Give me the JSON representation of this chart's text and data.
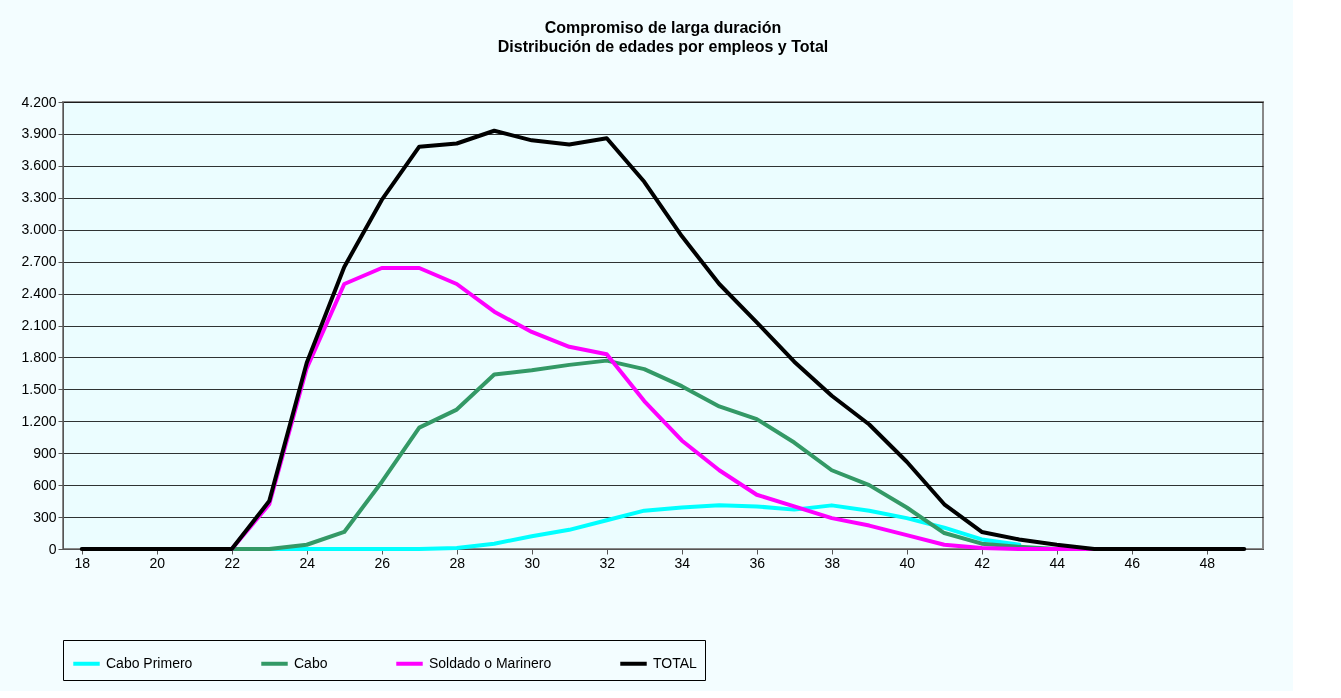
{
  "chart_data": {
    "type": "line",
    "title": "Compromiso de larga duración",
    "subtitle": "Distribución de edades por empleos y Total",
    "x": [
      18,
      19,
      20,
      21,
      22,
      23,
      24,
      25,
      26,
      27,
      28,
      29,
      30,
      31,
      32,
      33,
      34,
      35,
      36,
      37,
      38,
      39,
      40,
      41,
      42,
      43,
      44,
      45,
      46,
      47,
      48,
      49
    ],
    "xlim": [
      17.5,
      49.5
    ],
    "xticks": [
      18,
      20,
      22,
      24,
      26,
      28,
      30,
      32,
      34,
      36,
      38,
      40,
      42,
      44,
      46,
      48
    ],
    "ylim": [
      0,
      4200
    ],
    "yticks": [
      0,
      {
        "value": 300,
        "label": "300"
      },
      {
        "value": 600,
        "label": "600"
      },
      {
        "value": 900,
        "label": "900"
      },
      {
        "value": 1200,
        "label": "1.200"
      },
      {
        "value": 1500,
        "label": "1.500"
      },
      {
        "value": 1800,
        "label": "1.800"
      },
      {
        "value": 2100,
        "label": "2.100"
      },
      {
        "value": 2400,
        "label": "2.400"
      },
      {
        "value": 2700,
        "label": "2.700"
      },
      {
        "value": 3000,
        "label": "3.000"
      },
      {
        "value": 3300,
        "label": "3.300"
      },
      {
        "value": 3600,
        "label": "3.600"
      },
      {
        "value": 3900,
        "label": "3.900"
      },
      {
        "value": 4200,
        "label": "4.200"
      }
    ],
    "grid": "y",
    "legend": "bottom",
    "line_style": "solid",
    "series": [
      {
        "name": "Cabo Primero",
        "color": "#00ffff",
        "values": [
          null,
          null,
          null,
          null,
          0,
          0,
          0,
          0,
          0,
          0,
          10,
          50,
          120,
          180,
          270,
          360,
          390,
          410,
          400,
          370,
          410,
          360,
          290,
          200,
          90,
          40,
          null,
          null,
          null,
          null,
          null,
          null
        ]
      },
      {
        "name": "Cabo",
        "color": "#339966",
        "values": [
          null,
          null,
          null,
          null,
          0,
          0,
          40,
          160,
          630,
          1140,
          1310,
          1640,
          1680,
          1730,
          1770,
          1690,
          1530,
          1340,
          1220,
          1000,
          740,
          600,
          390,
          150,
          50,
          20,
          0,
          0,
          null,
          null,
          null,
          null
        ]
      },
      {
        "name": "Soldado o Marinero",
        "color": "#ff00ff",
        "values": [
          null,
          null,
          null,
          null,
          0,
          420,
          1700,
          2490,
          2640,
          2640,
          2490,
          2230,
          2040,
          1900,
          1830,
          1390,
          1020,
          740,
          510,
          400,
          290,
          220,
          130,
          40,
          10,
          0,
          0,
          0,
          null,
          null,
          null,
          null
        ]
      },
      {
        "name": "TOTAL",
        "color": "#000000",
        "values": [
          0,
          0,
          0,
          0,
          0,
          450,
          1750,
          2650,
          3280,
          3780,
          3810,
          3930,
          3840,
          3800,
          3860,
          3450,
          2940,
          2490,
          2130,
          1760,
          1440,
          1170,
          820,
          420,
          160,
          90,
          40,
          0,
          0,
          0,
          0,
          0
        ]
      }
    ]
  }
}
